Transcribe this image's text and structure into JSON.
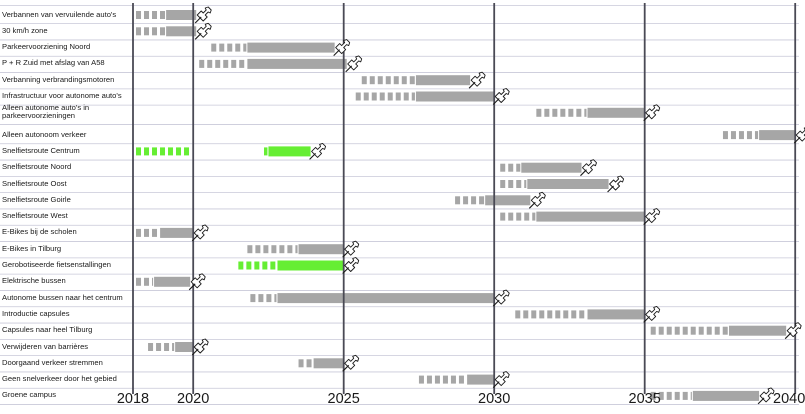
{
  "chart_data": {
    "type": "gantt-timeline",
    "title": "",
    "xlabel": "",
    "ylabel": "",
    "x_ticks": [
      2018,
      2020,
      2025,
      2030,
      2035,
      2040
    ],
    "xlim": [
      2018,
      2040
    ],
    "grid": "horizontal row lines and vertical lines at tick years",
    "legend": "none",
    "colors": {
      "bar": "#a6a6a6",
      "green": "#66ee33",
      "gridline": "#c8c8d8",
      "yearline": "#4a4a55"
    },
    "marker_icon": "pushpin-icon",
    "rows": [
      {
        "label": "Verbannen van vervuilende auto's",
        "color": "gray",
        "dash_start": 2018.1,
        "solid_start": 2019.1,
        "end": 2020.1
      },
      {
        "label": "30 km/h zone",
        "color": "gray",
        "dash_start": 2018.1,
        "solid_start": 2019.1,
        "end": 2020.1
      },
      {
        "label": "Parkeervoorziening Noord",
        "color": "gray",
        "dash_start": 2020.6,
        "solid_start": 2021.8,
        "end": 2024.7
      },
      {
        "label": "P + R Zuid met afslag van A58",
        "color": "gray",
        "dash_start": 2020.2,
        "solid_start": 2021.8,
        "end": 2025.1
      },
      {
        "label": "Verbanning verbrandingsmotoren",
        "color": "gray",
        "dash_start": 2025.6,
        "solid_start": 2027.4,
        "end": 2029.2
      },
      {
        "label": "Infrastructuur voor autonome auto's",
        "color": "gray",
        "dash_start": 2025.4,
        "solid_start": 2027.4,
        "end": 2030.0
      },
      {
        "label": "Alleen autonome auto's in parkeervoorzieningen",
        "color": "gray",
        "dash_start": 2031.4,
        "solid_start": 2033.1,
        "end": 2035.0
      },
      {
        "label": "Alleen autonoom verkeer",
        "color": "gray",
        "dash_start": 2037.6,
        "solid_start": 2038.8,
        "end": 2040.0
      },
      {
        "label": "Snelfietsroute Centrum",
        "color": "green",
        "dash_start": 2018.1,
        "solid_start": 2022.5,
        "end": 2023.9,
        "gap": [
          2020.1,
          2022.1
        ]
      },
      {
        "label": "Snelfietsroute Noord",
        "color": "gray",
        "dash_start": 2030.2,
        "solid_start": 2030.9,
        "end": 2032.9
      },
      {
        "label": "Snelfietsroute Oost",
        "color": "gray",
        "dash_start": 2030.2,
        "solid_start": 2031.1,
        "end": 2033.8
      },
      {
        "label": "Snelfietsroute Goirle",
        "color": "gray",
        "dash_start": 2028.7,
        "solid_start": 2029.7,
        "end": 2031.2
      },
      {
        "label": "Snelfietsroute West",
        "color": "gray",
        "dash_start": 2030.2,
        "solid_start": 2031.4,
        "end": 2035.0
      },
      {
        "label": "E-Bikes bij de scholen",
        "color": "gray",
        "dash_start": 2018.1,
        "solid_start": 2018.9,
        "end": 2020.0
      },
      {
        "label": "E-Bikes in Tilburg",
        "color": "gray",
        "dash_start": 2021.8,
        "solid_start": 2023.5,
        "end": 2025.0
      },
      {
        "label": "Gerobotiseerde fietsenstallingen",
        "color": "green",
        "dash_start": 2021.5,
        "solid_start": 2022.8,
        "end": 2025.0
      },
      {
        "label": "Elektrische bussen",
        "color": "gray",
        "dash_start": 2018.1,
        "solid_start": 2018.7,
        "end": 2019.9
      },
      {
        "label": "Autonome bussen naar het centrum",
        "color": "gray",
        "dash_start": 2021.9,
        "solid_start": 2022.8,
        "end": 2030.0
      },
      {
        "label": "Introductie capsules",
        "color": "gray",
        "dash_start": 2030.7,
        "solid_start": 2033.1,
        "end": 2035.0
      },
      {
        "label": "Capsules naar heel Tilburg",
        "color": "gray",
        "dash_start": 2035.2,
        "solid_start": 2037.8,
        "end": 2039.7
      },
      {
        "label": "Verwijderen van barrières",
        "color": "gray",
        "dash_start": 2018.5,
        "solid_start": 2019.4,
        "end": 2020.0
      },
      {
        "label": "Doorgaand verkeer stremmen",
        "color": "gray",
        "dash_start": 2023.5,
        "solid_start": 2024.0,
        "end": 2025.0
      },
      {
        "label": "Geen snelverkeer door het gebied",
        "color": "gray",
        "dash_start": 2027.5,
        "solid_start": 2029.1,
        "end": 2030.0
      },
      {
        "label": "Groene campus",
        "color": "gray",
        "dash_start": 2035.2,
        "solid_start": 2036.6,
        "end": 2038.8
      }
    ]
  }
}
